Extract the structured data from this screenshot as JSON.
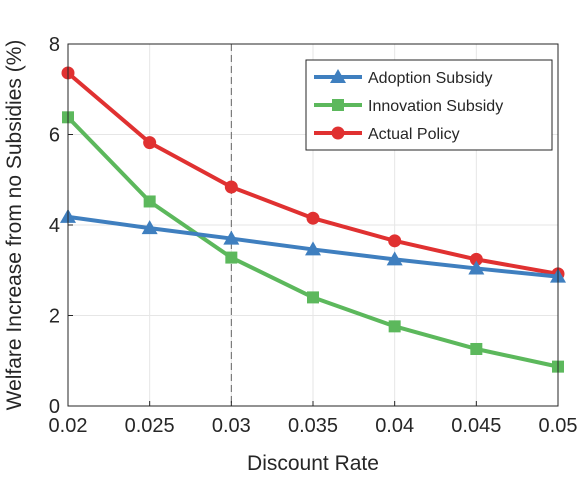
{
  "chart_data": {
    "type": "line",
    "xlabel": "Discount Rate",
    "ylabel": "Welfare Increase from no Subsidies (%)",
    "x": [
      0.02,
      0.025,
      0.03,
      0.035,
      0.04,
      0.045,
      0.05
    ],
    "xlim": [
      0.02,
      0.05
    ],
    "ylim": [
      0,
      8
    ],
    "x_ticks": [
      "0.02",
      "0.025",
      "0.03",
      "0.035",
      "0.04",
      "0.045",
      "0.05"
    ],
    "y_ticks": [
      "0",
      "2",
      "4",
      "6",
      "8"
    ],
    "grid": true,
    "legend": "top-right",
    "reference_line": {
      "x": 0.03,
      "style": "dashed"
    },
    "series": [
      {
        "name": "Adoption Subsidy",
        "color": "#3f7fbf",
        "marker": "triangle",
        "values": [
          4.18,
          3.93,
          3.7,
          3.46,
          3.24,
          3.04,
          2.86
        ]
      },
      {
        "name": "Innovation Subsidy",
        "color": "#5cb85c",
        "marker": "square",
        "values": [
          6.38,
          4.52,
          3.28,
          2.4,
          1.76,
          1.26,
          0.87
        ]
      },
      {
        "name": "Actual Policy",
        "color": "#e03131",
        "marker": "circle",
        "values": [
          7.36,
          5.82,
          4.84,
          4.15,
          3.65,
          3.24,
          2.92
        ]
      }
    ]
  }
}
